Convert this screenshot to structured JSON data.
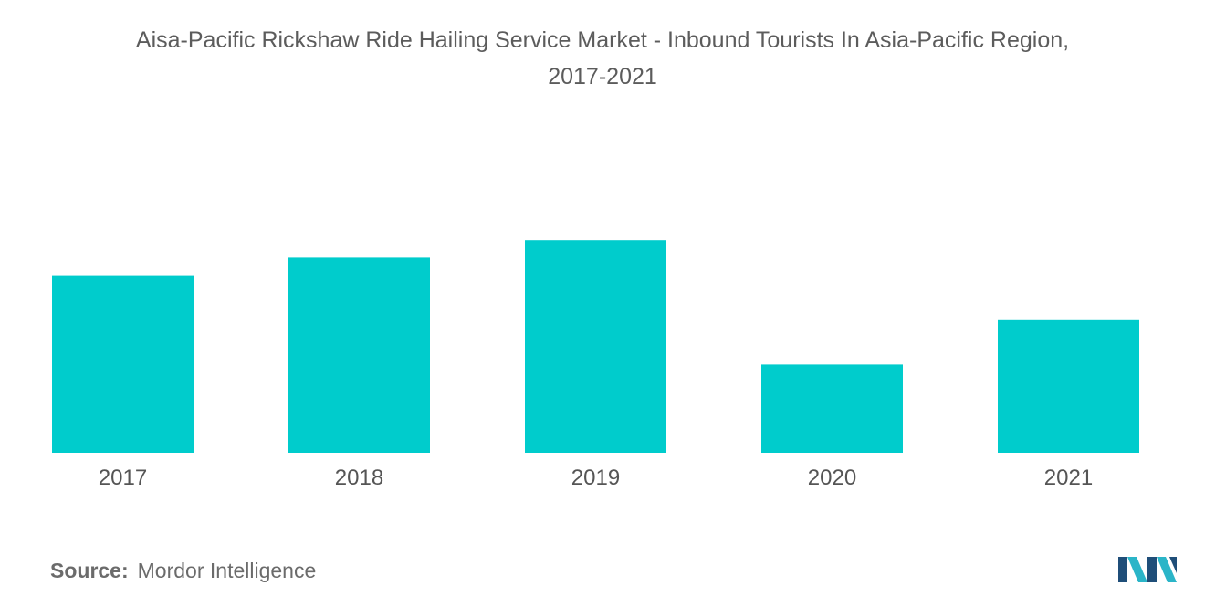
{
  "title_line1": "Aisa-Pacific Rickshaw Ride Hailing Service Market - Inbound Tourists In Asia-Pacific Region,",
  "title_line2": "2017-2021",
  "source_label": "Source:",
  "source_text": "Mordor Intelligence",
  "bar_color": "#00cccc",
  "logo": {
    "icon": "mordor-intelligence-logo",
    "colors": [
      "#1f4e79",
      "#2bb5c8"
    ]
  },
  "chart_data": {
    "type": "bar",
    "categories": [
      "2017",
      "2018",
      "2019",
      "2020",
      "2021"
    ],
    "values": [
      324,
      356,
      388,
      161,
      242
    ],
    "title": "Aisa-Pacific Rickshaw Ride Hailing Service Market - Inbound Tourists In Asia-Pacific Region, 2017-2021",
    "xlabel": "",
    "ylabel": "",
    "ylim": [
      0,
      400
    ],
    "grid": false,
    "legend": "none"
  }
}
